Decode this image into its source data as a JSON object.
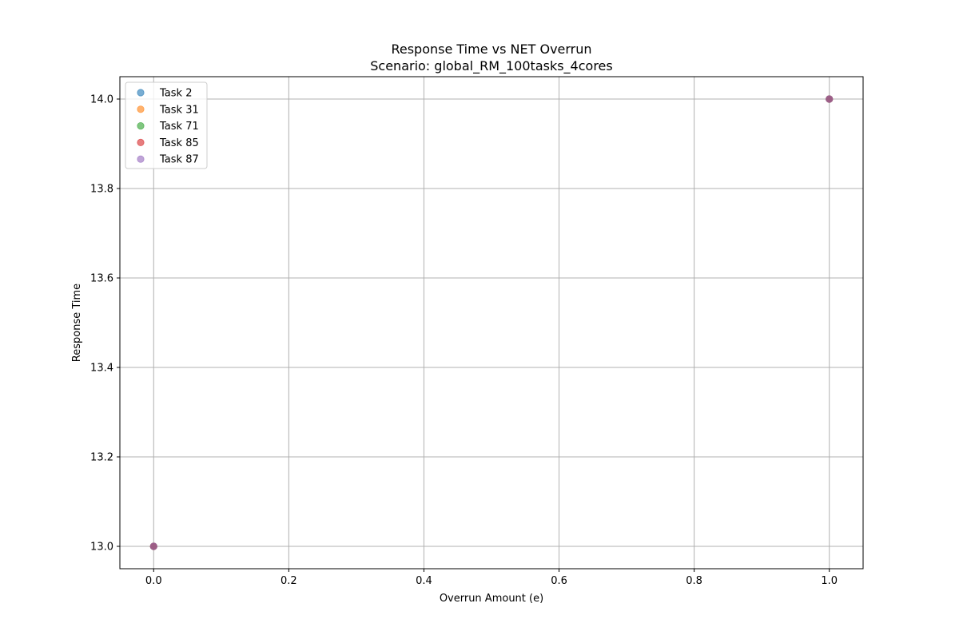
{
  "chart_data": {
    "type": "scatter",
    "title": "Response Time vs NET Overrun",
    "subtitle": "Scenario: global_RM_100tasks_4cores",
    "xlabel": "Overrun Amount (e)",
    "ylabel": "Response Time",
    "xlim": [
      -0.05,
      1.05
    ],
    "ylim": [
      12.95,
      14.05
    ],
    "xticks": [
      "0.0",
      "0.2",
      "0.4",
      "0.6",
      "0.8",
      "1.0"
    ],
    "xtick_values": [
      0.0,
      0.2,
      0.4,
      0.6,
      0.8,
      1.0
    ],
    "yticks": [
      "13.0",
      "13.2",
      "13.4",
      "13.6",
      "13.8",
      "14.0"
    ],
    "ytick_values": [
      13.0,
      13.2,
      13.4,
      13.6,
      13.8,
      14.0
    ],
    "grid": true,
    "legend_position": "upper-left",
    "marker_alpha": 0.6,
    "series": [
      {
        "name": "Task 2",
        "color": "#1f77b4",
        "points": [
          [
            0,
            13
          ],
          [
            1,
            14
          ]
        ]
      },
      {
        "name": "Task 31",
        "color": "#ff7f0e",
        "points": [
          [
            0,
            13
          ],
          [
            1,
            14
          ]
        ]
      },
      {
        "name": "Task 71",
        "color": "#2ca02c",
        "points": [
          [
            0,
            13
          ],
          [
            1,
            14
          ]
        ]
      },
      {
        "name": "Task 85",
        "color": "#d62728",
        "points": [
          [
            0,
            13
          ],
          [
            1,
            14
          ]
        ]
      },
      {
        "name": "Task 87",
        "color": "#9467bd",
        "points": [
          [
            0,
            13
          ],
          [
            1,
            14
          ]
        ]
      }
    ]
  }
}
